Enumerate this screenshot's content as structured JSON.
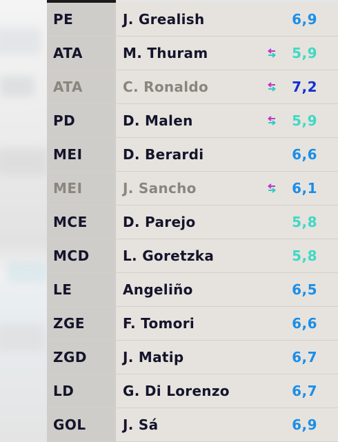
{
  "colors": {
    "rating_blue": "#1b8ee8",
    "rating_teal": "#3fd9c4",
    "rating_dark_blue": "#1230d0",
    "sub_in": "#b83bc7",
    "sub_out": "#33c9c0"
  },
  "players": [
    {
      "pos": "PE",
      "name": "J. Grealish",
      "rating": "6,9",
      "rating_color": "#1b8ee8",
      "sub": false,
      "dim": false
    },
    {
      "pos": "ATA",
      "name": "M. Thuram",
      "rating": "5,9",
      "rating_color": "#3fd9c4",
      "sub": true,
      "dim": false
    },
    {
      "pos": "ATA",
      "name": "C. Ronaldo",
      "rating": "7,2",
      "rating_color": "#1230d0",
      "sub": true,
      "dim": true
    },
    {
      "pos": "PD",
      "name": "D. Malen",
      "rating": "5,9",
      "rating_color": "#3fd9c4",
      "sub": true,
      "dim": false
    },
    {
      "pos": "MEI",
      "name": "D. Berardi",
      "rating": "6,6",
      "rating_color": "#1b8ee8",
      "sub": false,
      "dim": false
    },
    {
      "pos": "MEI",
      "name": "J. Sancho",
      "rating": "6,1",
      "rating_color": "#1b8ee8",
      "sub": true,
      "dim": true
    },
    {
      "pos": "MCE",
      "name": "D. Parejo",
      "rating": "5,8",
      "rating_color": "#3fd9c4",
      "sub": false,
      "dim": false
    },
    {
      "pos": "MCD",
      "name": "L. Goretzka",
      "rating": "5,8",
      "rating_color": "#3fd9c4",
      "sub": false,
      "dim": false
    },
    {
      "pos": "LE",
      "name": "Angeliño",
      "rating": "6,5",
      "rating_color": "#1b8ee8",
      "sub": false,
      "dim": false
    },
    {
      "pos": "ZGE",
      "name": "F. Tomori",
      "rating": "6,6",
      "rating_color": "#1b8ee8",
      "sub": false,
      "dim": false
    },
    {
      "pos": "ZGD",
      "name": "J. Matip",
      "rating": "6,7",
      "rating_color": "#1b8ee8",
      "sub": false,
      "dim": false
    },
    {
      "pos": "LD",
      "name": "G. Di Lorenzo",
      "rating": "6,7",
      "rating_color": "#1b8ee8",
      "sub": false,
      "dim": false
    },
    {
      "pos": "GOL",
      "name": "J. Sá",
      "rating": "6,9",
      "rating_color": "#1b8ee8",
      "sub": false,
      "dim": false
    }
  ],
  "icons": {
    "substitution": "substitution-arrows-icon"
  }
}
